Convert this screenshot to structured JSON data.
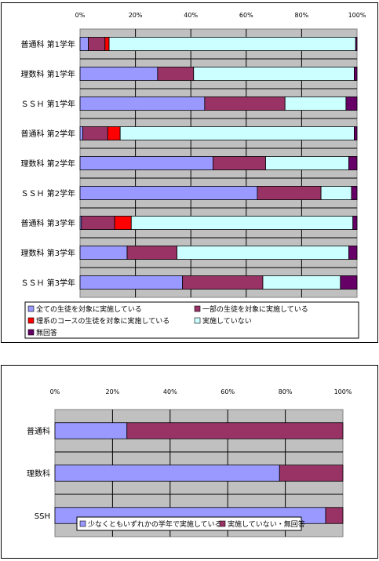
{
  "chart_data": [
    {
      "type": "bar",
      "stacked": true,
      "orientation": "horizontal",
      "percent": true,
      "categories": [
        "普通科 第1学年",
        "理数科 第1学年",
        "ＳＳＨ 第1学年",
        "普通科 第2学年",
        "理数科 第2学年",
        "ＳＳＨ 第2学年",
        "普通科 第3学年",
        "理数科 第3学年",
        "ＳＳＨ 第3学年"
      ],
      "x_ticks": [
        "0%",
        "20%",
        "40%",
        "60%",
        "80%",
        "100%"
      ],
      "xlim": [
        0,
        100
      ],
      "grid": true,
      "legend_position": "bottom",
      "series": [
        {
          "name": "全ての生徒を対象に実施している",
          "color": "#9999ff",
          "values": [
            3,
            28,
            45,
            1,
            48,
            64,
            0.5,
            17,
            37
          ]
        },
        {
          "name": "一部の生徒を対象に実施している",
          "color": "#993366",
          "values": [
            6,
            13,
            29,
            9,
            19,
            23,
            12,
            18,
            29
          ]
        },
        {
          "name": "理系のコースの生徒を対象に実施している",
          "color": "#ff0000",
          "values": [
            1.5,
            0,
            0,
            4.5,
            0,
            0,
            6,
            0,
            0
          ]
        },
        {
          "name": "実施していない",
          "color": "#ccffff",
          "values": [
            89,
            58,
            22,
            84.5,
            30,
            11,
            80,
            62,
            28
          ]
        },
        {
          "name": "無回答",
          "color": "#660066",
          "values": [
            0.5,
            1,
            4,
            1,
            3,
            2,
            1.5,
            3,
            6
          ]
        }
      ]
    },
    {
      "type": "bar",
      "stacked": true,
      "orientation": "horizontal",
      "percent": true,
      "categories": [
        "普通科",
        "理数科",
        "SSH"
      ],
      "x_ticks": [
        "0%",
        "20%",
        "40%",
        "60%",
        "80%",
        "100%"
      ],
      "xlim": [
        0,
        100
      ],
      "grid": true,
      "legend_position": "bottom",
      "series": [
        {
          "name": "少なくともいずれかの学年で実施している",
          "color": "#9999ff",
          "values": [
            25,
            78,
            94
          ]
        },
        {
          "name": "実施していない・無回答",
          "color": "#993366",
          "values": [
            75,
            22,
            6
          ]
        }
      ]
    }
  ]
}
